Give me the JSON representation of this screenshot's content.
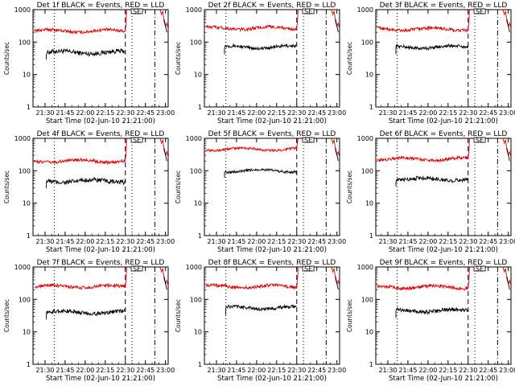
{
  "chart_data": [
    {
      "type": "line",
      "title": "Det 1f BLACK = Events, RED = LLD",
      "xlabel": "Start Time (02-Jun-10 21:21:00)",
      "ylabel": "Counts/sec",
      "yscale": "log",
      "ylim": [
        1,
        1000
      ],
      "xlim": [
        "21:21",
        "23:02"
      ],
      "x_ticks": [
        "21:30",
        "21:45",
        "22:00",
        "22:15",
        "22:30",
        "22:45",
        "23:00"
      ],
      "y_ticks": [
        "1",
        "10",
        "100",
        "1000"
      ],
      "series": [
        {
          "color": "#000000",
          "start": "21:31",
          "end": "22:30",
          "level": 48,
          "jitter": 0.07
        },
        {
          "color": "#dd0000",
          "start": "21:22",
          "end": "22:30",
          "level": 220,
          "jitter": 0.05,
          "rise_to": 950,
          "tail": true
        }
      ],
      "vlines": [
        {
          "x": "21:37",
          "style": "dotted"
        },
        {
          "x": "22:30",
          "style": "dashed"
        },
        {
          "x": "22:35",
          "style": "dotted"
        },
        {
          "x": "22:52",
          "style": "dash-dot"
        }
      ],
      "marker": "SE",
      "marker_x": "22:38"
    },
    {
      "type": "line",
      "title": "Det 2f BLACK = Events, RED = LLD",
      "xlabel": "Start Time (02-Jun-10 21:21:00)",
      "ylabel": "Counts/sec",
      "yscale": "log",
      "ylim": [
        1,
        1000
      ],
      "xlim": [
        "21:21",
        "23:02"
      ],
      "x_ticks": [
        "21:30",
        "21:45",
        "22:00",
        "22:15",
        "22:30",
        "22:45",
        "23:00"
      ],
      "y_ticks": [
        "1",
        "10",
        "100",
        "1000"
      ],
      "series": [
        {
          "color": "#000000",
          "start": "21:36",
          "end": "22:30",
          "level": 70,
          "jitter": 0.05
        },
        {
          "color": "#dd0000",
          "start": "21:22",
          "end": "22:30",
          "level": 270,
          "jitter": 0.05,
          "rise_to": 950,
          "tail": true
        }
      ],
      "vlines": [
        {
          "x": "21:37",
          "style": "dotted"
        },
        {
          "x": "22:30",
          "style": "dashed"
        },
        {
          "x": "22:35",
          "style": "dotted"
        },
        {
          "x": "22:52",
          "style": "dash-dot"
        }
      ],
      "marker": "SE",
      "marker_x": "22:38"
    },
    {
      "type": "line",
      "title": "Det 3f BLACK = Events, RED = LLD",
      "xlabel": "Start Time (02-Jun-10 21:21:00)",
      "ylabel": "Counts/sec",
      "yscale": "log",
      "ylim": [
        1,
        1000
      ],
      "xlim": [
        "21:21",
        "23:02"
      ],
      "x_ticks": [
        "21:30",
        "21:45",
        "22:00",
        "22:15",
        "22:30",
        "22:45",
        "23:00"
      ],
      "y_ticks": [
        "1",
        "10",
        "100",
        "1000"
      ],
      "series": [
        {
          "color": "#000000",
          "start": "21:36",
          "end": "22:30",
          "level": 70,
          "jitter": 0.05
        },
        {
          "color": "#dd0000",
          "start": "21:22",
          "end": "22:30",
          "level": 250,
          "jitter": 0.05,
          "rise_to": 950,
          "tail": true
        }
      ],
      "vlines": [
        {
          "x": "21:37",
          "style": "dotted"
        },
        {
          "x": "22:30",
          "style": "dashed"
        },
        {
          "x": "22:35",
          "style": "dotted"
        },
        {
          "x": "22:52",
          "style": "dash-dot"
        }
      ],
      "marker": "SE",
      "marker_x": "22:38"
    },
    {
      "type": "line",
      "title": "Det 4f BLACK = Events, RED = LLD",
      "xlabel": "Start Time (02-Jun-10 21:21:00)",
      "ylabel": "Counts/sec",
      "yscale": "log",
      "ylim": [
        1,
        1000
      ],
      "xlim": [
        "21:21",
        "23:02"
      ],
      "x_ticks": [
        "21:30",
        "21:45",
        "22:00",
        "22:15",
        "22:30",
        "22:45",
        "23:00"
      ],
      "y_ticks": [
        "1",
        "10",
        "100",
        "1000"
      ],
      "series": [
        {
          "color": "#000000",
          "start": "21:31",
          "end": "22:30",
          "level": 48,
          "jitter": 0.07
        },
        {
          "color": "#dd0000",
          "start": "21:22",
          "end": "22:30",
          "level": 200,
          "jitter": 0.05,
          "rise_to": 950,
          "tail": true
        }
      ],
      "vlines": [
        {
          "x": "21:37",
          "style": "dotted"
        },
        {
          "x": "22:30",
          "style": "dashed"
        },
        {
          "x": "22:35",
          "style": "dotted"
        },
        {
          "x": "22:52",
          "style": "dash-dot"
        }
      ],
      "marker": "SE",
      "marker_x": "22:38"
    },
    {
      "type": "line",
      "title": "Det 5f BLACK = Events, RED = LLD",
      "xlabel": "Start Time (02-Jun-10 21:21:00)",
      "ylabel": "Counts/sec",
      "yscale": "log",
      "ylim": [
        1,
        1000
      ],
      "xlim": [
        "21:21",
        "23:02"
      ],
      "x_ticks": [
        "21:30",
        "21:45",
        "22:00",
        "22:15",
        "22:30",
        "22:45",
        "23:00"
      ],
      "y_ticks": [
        "1",
        "10",
        "100",
        "1000"
      ],
      "series": [
        {
          "color": "#000000",
          "start": "21:36",
          "end": "22:30",
          "level": 100,
          "jitter": 0.04
        },
        {
          "color": "#dd0000",
          "start": "21:22",
          "end": "22:30",
          "level": 460,
          "jitter": 0.04,
          "rise_to": 1000,
          "tail": true
        }
      ],
      "vlines": [
        {
          "x": "21:37",
          "style": "dotted"
        },
        {
          "x": "22:30",
          "style": "dashed"
        },
        {
          "x": "22:35",
          "style": "dotted"
        },
        {
          "x": "22:52",
          "style": "dash-dot"
        }
      ],
      "marker": "SE",
      "marker_x": "22:38"
    },
    {
      "type": "line",
      "title": "Det 6f BLACK = Events, RED = LLD",
      "xlabel": "Start Time (02-Jun-10 21:21:00)",
      "ylabel": "Counts/sec",
      "yscale": "log",
      "ylim": [
        1,
        1000
      ],
      "xlim": [
        "21:21",
        "23:02"
      ],
      "x_ticks": [
        "21:30",
        "21:45",
        "22:00",
        "22:15",
        "22:30",
        "22:45",
        "23:00"
      ],
      "y_ticks": [
        "1",
        "10",
        "100",
        "1000"
      ],
      "series": [
        {
          "color": "#000000",
          "start": "21:36",
          "end": "22:30",
          "level": 55,
          "jitter": 0.06
        },
        {
          "color": "#dd0000",
          "start": "21:22",
          "end": "22:30",
          "level": 230,
          "jitter": 0.05,
          "rise_to": 950,
          "tail": true
        }
      ],
      "vlines": [
        {
          "x": "21:37",
          "style": "dotted"
        },
        {
          "x": "22:30",
          "style": "dashed"
        },
        {
          "x": "22:35",
          "style": "dotted"
        },
        {
          "x": "22:52",
          "style": "dash-dot"
        }
      ],
      "marker": "SE",
      "marker_x": "22:38"
    },
    {
      "type": "line",
      "title": "Det 7f BLACK = Events, RED = LLD",
      "xlabel": "Start Time (02-Jun-10 21:21:00)",
      "ylabel": "Counts/sec",
      "yscale": "log",
      "ylim": [
        1,
        1000
      ],
      "xlim": [
        "21:21",
        "23:02"
      ],
      "x_ticks": [
        "21:30",
        "21:45",
        "22:00",
        "22:15",
        "22:30",
        "22:45",
        "23:00"
      ],
      "y_ticks": [
        "1",
        "10",
        "100",
        "1000"
      ],
      "series": [
        {
          "color": "#000000",
          "start": "21:31",
          "end": "22:30",
          "level": 40,
          "jitter": 0.06
        },
        {
          "color": "#dd0000",
          "start": "21:22",
          "end": "22:30",
          "level": 250,
          "jitter": 0.05,
          "rise_to": 950,
          "tail": true
        }
      ],
      "vlines": [
        {
          "x": "21:37",
          "style": "dotted"
        },
        {
          "x": "22:30",
          "style": "dashed"
        },
        {
          "x": "22:35",
          "style": "dotted"
        },
        {
          "x": "22:52",
          "style": "dash-dot"
        }
      ],
      "marker": "SE",
      "marker_x": "22:38"
    },
    {
      "type": "line",
      "title": "Det 8f BLACK = Events, RED = LLD",
      "xlabel": "Start Time (02-Jun-10 21:21:00)",
      "ylabel": "Counts/sec",
      "yscale": "log",
      "ylim": [
        1,
        1000
      ],
      "xlim": [
        "21:21",
        "23:02"
      ],
      "x_ticks": [
        "21:30",
        "21:45",
        "22:00",
        "22:15",
        "22:30",
        "22:45",
        "23:00"
      ],
      "y_ticks": [
        "1",
        "10",
        "100",
        "1000"
      ],
      "series": [
        {
          "color": "#000000",
          "start": "21:37",
          "end": "22:30",
          "level": 55,
          "jitter": 0.05
        },
        {
          "color": "#dd0000",
          "start": "21:22",
          "end": "22:30",
          "level": 250,
          "jitter": 0.05,
          "rise_to": 950,
          "tail": true
        }
      ],
      "vlines": [
        {
          "x": "21:37",
          "style": "dotted"
        },
        {
          "x": "22:30",
          "style": "dashed"
        },
        {
          "x": "22:35",
          "style": "dotted"
        },
        {
          "x": "22:52",
          "style": "dash-dot"
        }
      ],
      "marker": "SE",
      "marker_x": "22:38"
    },
    {
      "type": "line",
      "title": "Det 9f BLACK = Events, RED = LLD",
      "xlabel": "Start Time (02-Jun-10 21:21:00)",
      "ylabel": "Counts/sec",
      "yscale": "log",
      "ylim": [
        1,
        1000
      ],
      "xlim": [
        "21:21",
        "23:02"
      ],
      "x_ticks": [
        "21:30",
        "21:45",
        "22:00",
        "22:15",
        "22:30",
        "22:45",
        "23:00"
      ],
      "y_ticks": [
        "1",
        "10",
        "100",
        "1000"
      ],
      "series": [
        {
          "color": "#000000",
          "start": "21:36",
          "end": "22:30",
          "level": 45,
          "jitter": 0.06
        },
        {
          "color": "#dd0000",
          "start": "21:22",
          "end": "22:30",
          "level": 240,
          "jitter": 0.05,
          "rise_to": 950,
          "tail": true
        }
      ],
      "vlines": [
        {
          "x": "21:37",
          "style": "dotted"
        },
        {
          "x": "22:30",
          "style": "dashed"
        },
        {
          "x": "22:35",
          "style": "dotted"
        },
        {
          "x": "22:52",
          "style": "dash-dot"
        }
      ],
      "marker": "SE",
      "marker_x": "22:38"
    }
  ]
}
